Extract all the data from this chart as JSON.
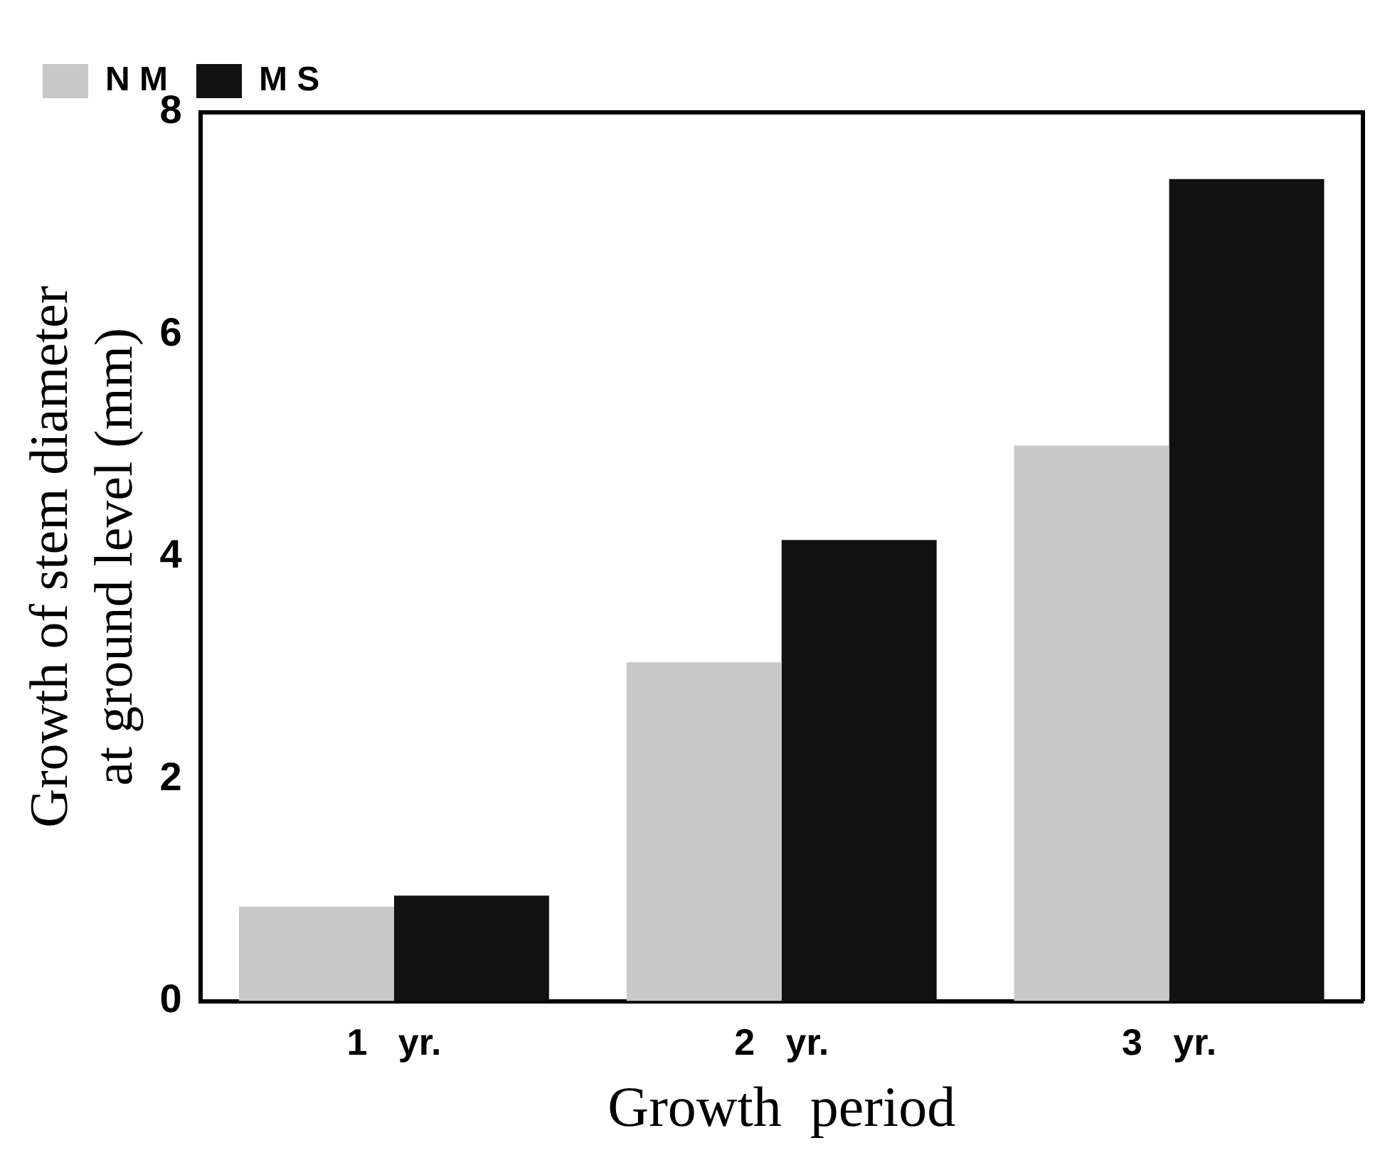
{
  "chart_data": {
    "type": "bar",
    "xlabel": "Growth  period",
    "ylabel": "Growth of stem diameter\nat ground level (mm)",
    "categories": [
      "1   yr.",
      "2   yr.",
      "3   yr."
    ],
    "series": [
      {
        "name": "N M",
        "color": "#c8c8c8",
        "values": [
          0.85,
          3.05,
          5.0
        ]
      },
      {
        "name": "M S",
        "color": "#111111",
        "values": [
          0.95,
          4.15,
          7.4
        ]
      }
    ],
    "ylim": [
      0,
      8
    ],
    "yticks": [
      0,
      2,
      4,
      6,
      8
    ],
    "grid": false,
    "legend": "top left"
  }
}
